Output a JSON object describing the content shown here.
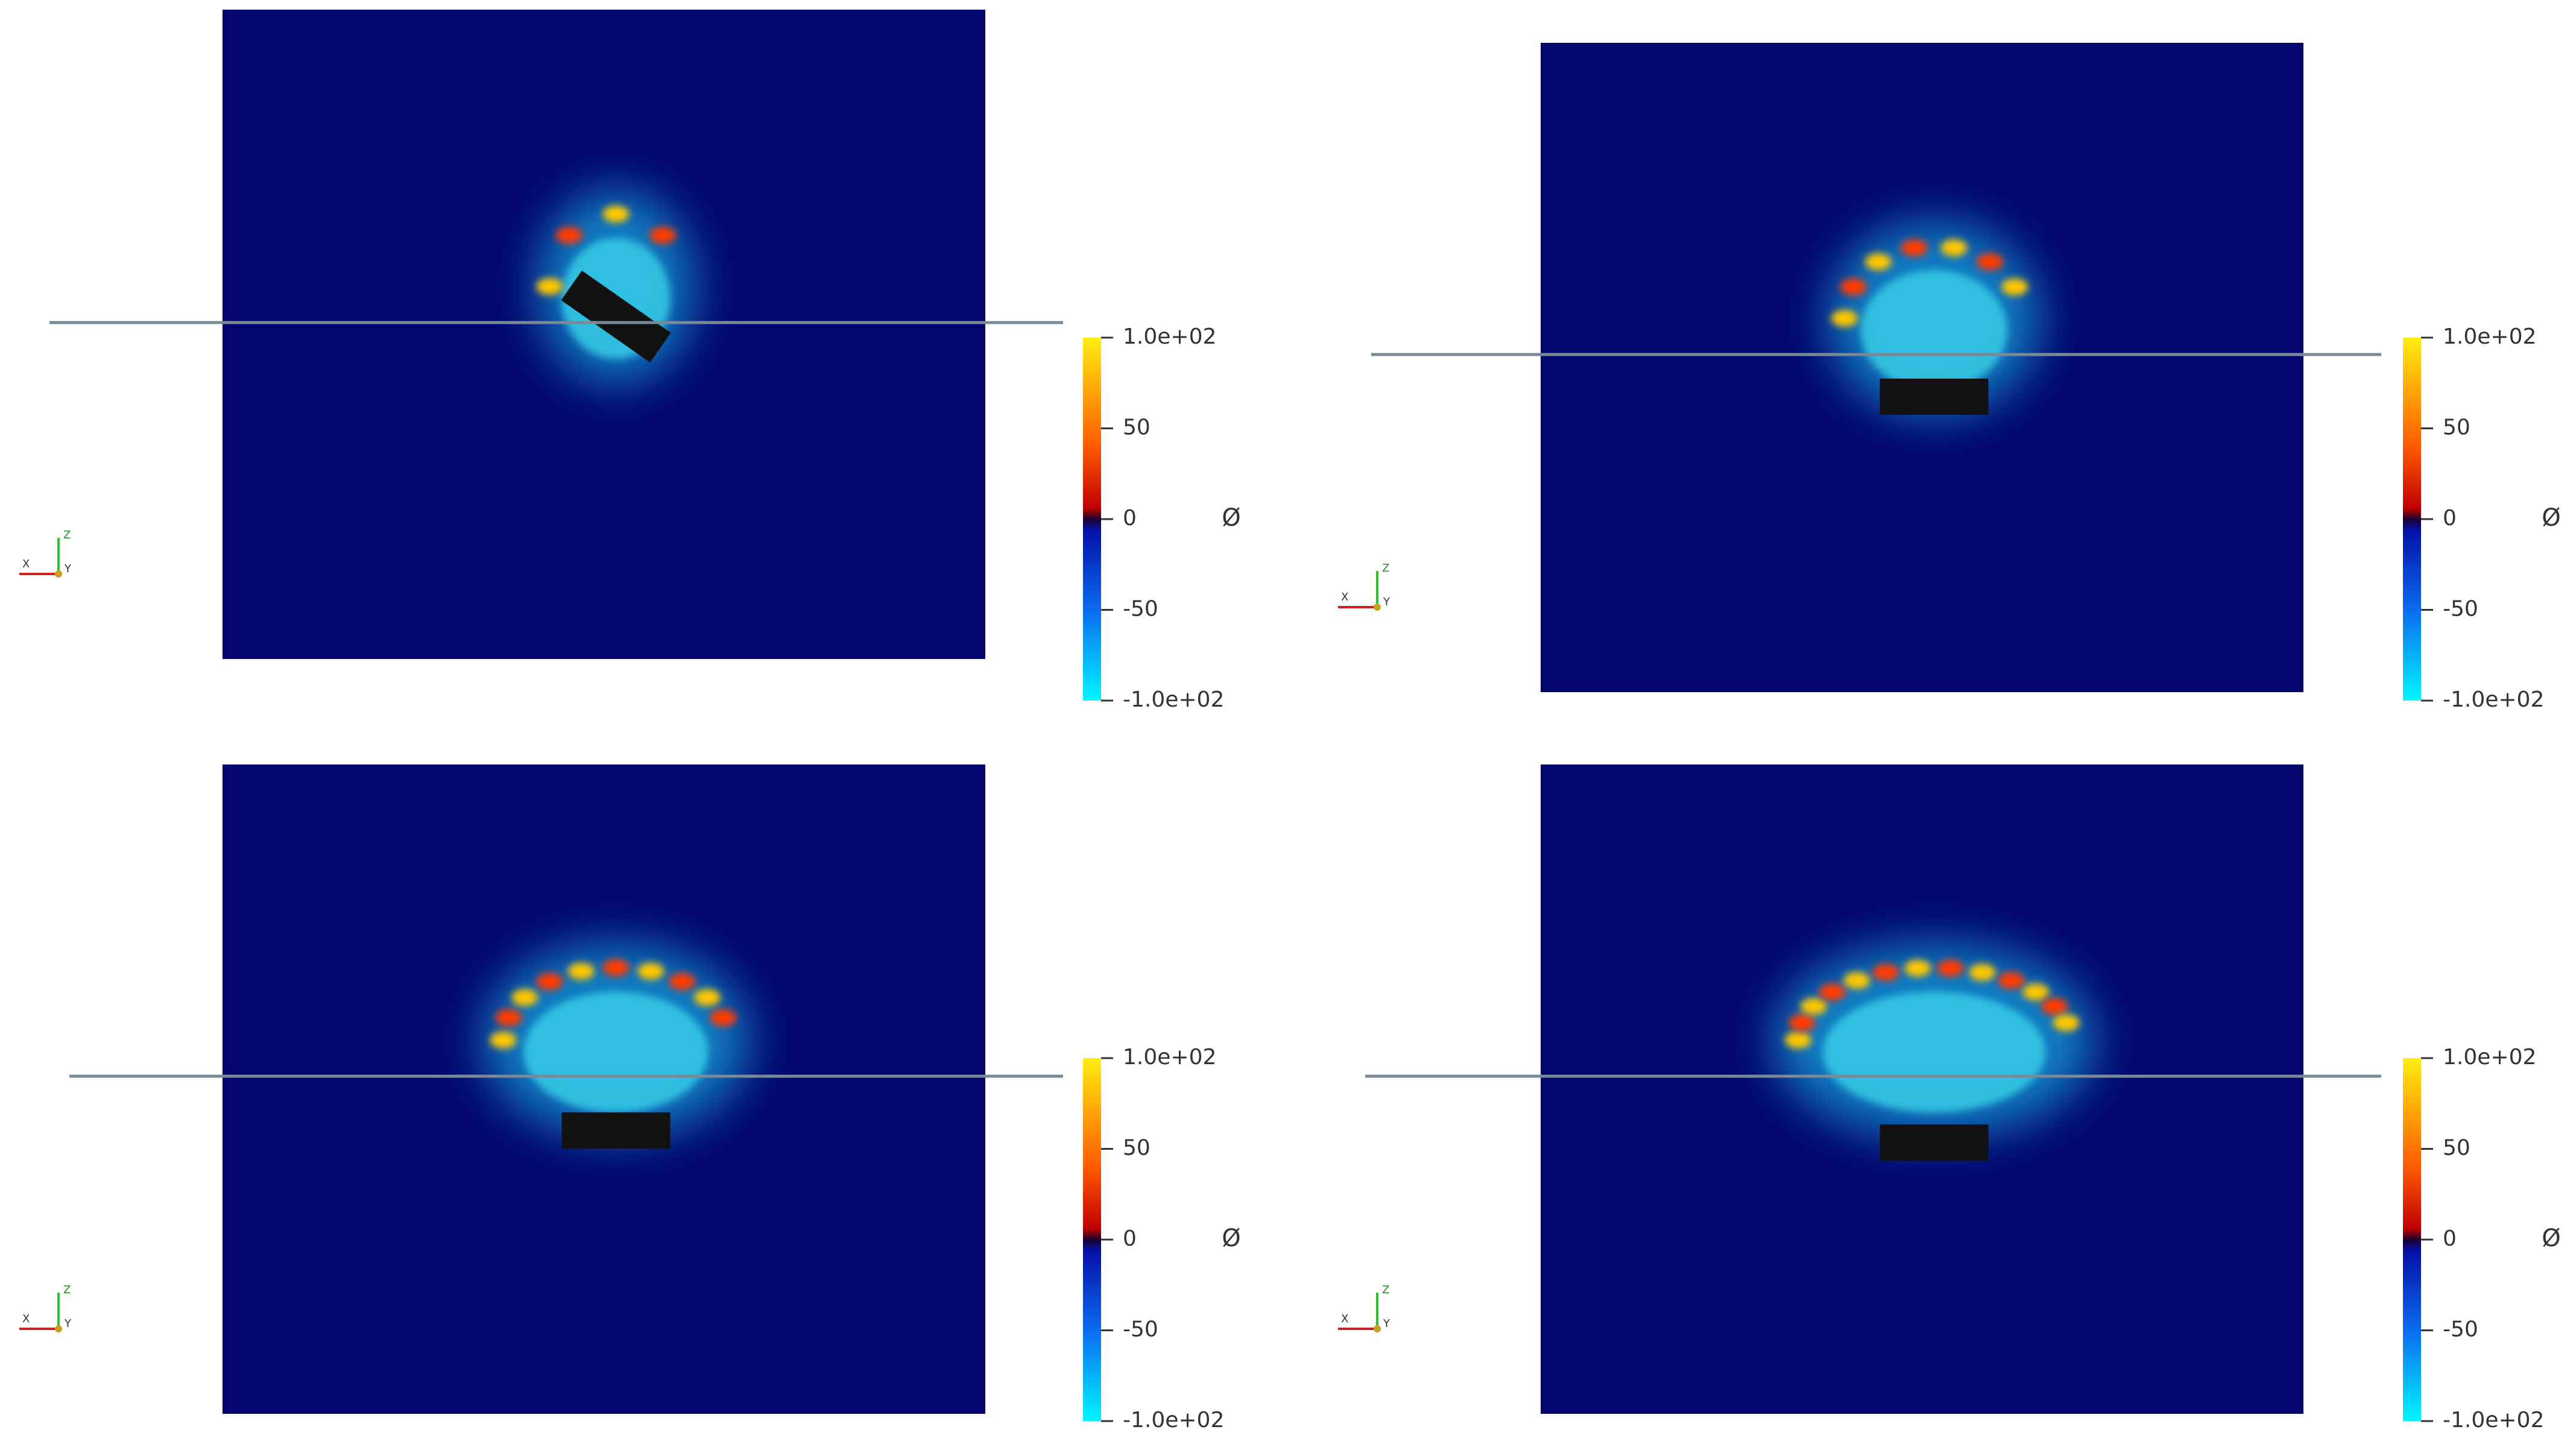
{
  "panels": [
    {
      "colorbar": {
        "title": "Ø",
        "ticks": [
          "1.0e+02",
          "50",
          "0",
          "-50",
          "-1.0e+02"
        ]
      },
      "triad": {
        "z": "Z",
        "x": "X",
        "y": "Y"
      }
    },
    {
      "colorbar": {
        "title": "Ø",
        "ticks": [
          "1.0e+02",
          "50",
          "0",
          "-50",
          "-1.0e+02"
        ]
      },
      "triad": {
        "z": "Z",
        "x": "X",
        "y": "Y"
      }
    },
    {
      "colorbar": {
        "title": "Ø",
        "ticks": [
          "1.0e+02",
          "50",
          "0",
          "-50",
          "-1.0e+02"
        ]
      },
      "triad": {
        "z": "Z",
        "x": "X",
        "y": "Y"
      }
    },
    {
      "colorbar": {
        "title": "Ø",
        "ticks": [
          "1.0e+02",
          "50",
          "0",
          "-50",
          "-1.0e+02"
        ]
      },
      "triad": {
        "z": "Z",
        "x": "X",
        "y": "Y"
      }
    }
  ]
}
